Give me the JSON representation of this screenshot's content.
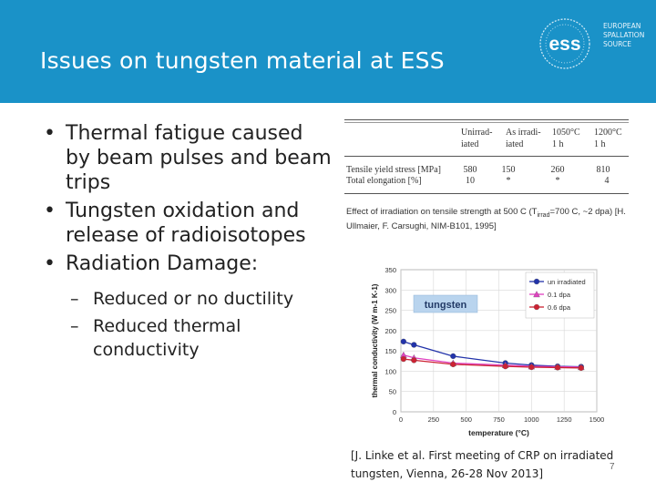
{
  "slide": {
    "title": "Issues on tungsten material at ESS",
    "page_number": "7"
  },
  "logo": {
    "mark": "ess",
    "lines": [
      "EUROPEAN",
      "SPALLATION",
      "SOURCE"
    ]
  },
  "bullets": [
    "Thermal fatigue caused by beam pulses and beam trips",
    "Tungsten oxidation and release of radioisotopes",
    "Radiation Damage:"
  ],
  "sub_bullets": [
    "Reduced or no ductility",
    "Reduced thermal conductivity"
  ],
  "table": {
    "columns": [
      {
        "line1": "Unirrad-",
        "line2": "iated"
      },
      {
        "line1": "As irradi-",
        "line2": "iated"
      },
      {
        "line1": "1050°C",
        "line2": "1 h"
      },
      {
        "line1": "1200°C",
        "line2": "1 h"
      }
    ],
    "rows": [
      {
        "label": "Tensile yield stress [MPa]",
        "values": [
          "580",
          "150",
          "260",
          "810"
        ]
      },
      {
        "label": "Total elongation [%]",
        "values": [
          "10",
          "*",
          "*",
          "4"
        ]
      }
    ]
  },
  "caption": {
    "part1": "Effect of irradiation on tensile strength at 500 C (T",
    "sub": "irrad",
    "part2": "=700 C, ~2 dpa) [H. Ullmaier, F. Carsughi, NIM-B101, 1995]"
  },
  "reference": "[J. Linke et al. First meeting of CRP on irradiated tungsten, Vienna, 26-28 Nov 2013]",
  "chart_data": {
    "type": "line",
    "inset_label": "tungsten",
    "xlabel": "temperature (°C)",
    "ylabel": "thermal conductivity (W m-1 K-1)",
    "xlim": [
      0,
      1500
    ],
    "ylim": [
      0,
      350
    ],
    "xticks": [
      0,
      250,
      500,
      750,
      1000,
      1250,
      1500
    ],
    "yticks": [
      0,
      50,
      100,
      150,
      200,
      250,
      300,
      350
    ],
    "legend_position": "top-right",
    "series": [
      {
        "name": "un irradiated",
        "color": "#2233aa",
        "marker": "circle",
        "x": [
          20,
          100,
          400,
          800,
          1000,
          1200,
          1380
        ],
        "y": [
          173,
          165,
          137,
          120,
          115,
          112,
          111
        ]
      },
      {
        "name": "0.1 dpa",
        "color": "#e040c0",
        "marker": "triangle",
        "x": [
          20,
          100,
          400,
          800,
          1000,
          1200,
          1380
        ],
        "y": [
          140,
          133,
          120,
          115,
          112,
          111,
          110
        ]
      },
      {
        "name": "0.6 dpa",
        "color": "#cc2233",
        "marker": "circle",
        "x": [
          20,
          100,
          400,
          800,
          1000,
          1200,
          1380
        ],
        "y": [
          130,
          127,
          117,
          112,
          110,
          109,
          108
        ]
      }
    ]
  }
}
